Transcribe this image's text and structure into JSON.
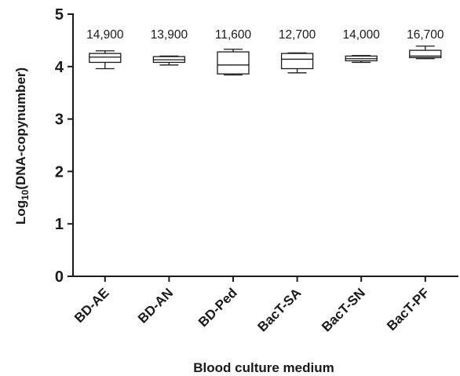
{
  "chart_data": {
    "type": "box",
    "xlabel": "Blood culture medium",
    "ylabel_prefix": "Log",
    "ylabel_sub": "10",
    "ylabel_suffix": "(DNA-copynumber)",
    "ylim": [
      0,
      5
    ],
    "yticks": [
      "0",
      "1",
      "2",
      "3",
      "4",
      "5"
    ],
    "grid": false,
    "categories": [
      "BD-AE",
      "BD-AN",
      "BD-Ped",
      "BacT-SA",
      "BacT-SN",
      "BacT-PF"
    ],
    "labels": [
      "14,900",
      "13,900",
      "11,600",
      "12,700",
      "14,000",
      "16,700"
    ],
    "boxes": [
      {
        "min": 3.96,
        "q1": 4.08,
        "median": 4.18,
        "q3": 4.25,
        "max": 4.3
      },
      {
        "min": 4.03,
        "q1": 4.08,
        "median": 4.13,
        "q3": 4.19,
        "max": 4.2
      },
      {
        "min": 3.84,
        "q1": 3.86,
        "median": 4.03,
        "q3": 4.28,
        "max": 4.33
      },
      {
        "min": 3.88,
        "q1": 3.96,
        "median": 4.14,
        "q3": 4.25,
        "max": 4.26
      },
      {
        "min": 4.08,
        "q1": 4.11,
        "median": 4.15,
        "q3": 4.2,
        "max": 4.21
      },
      {
        "min": 4.15,
        "q1": 4.17,
        "median": 4.2,
        "q3": 4.31,
        "max": 4.39
      }
    ]
  }
}
